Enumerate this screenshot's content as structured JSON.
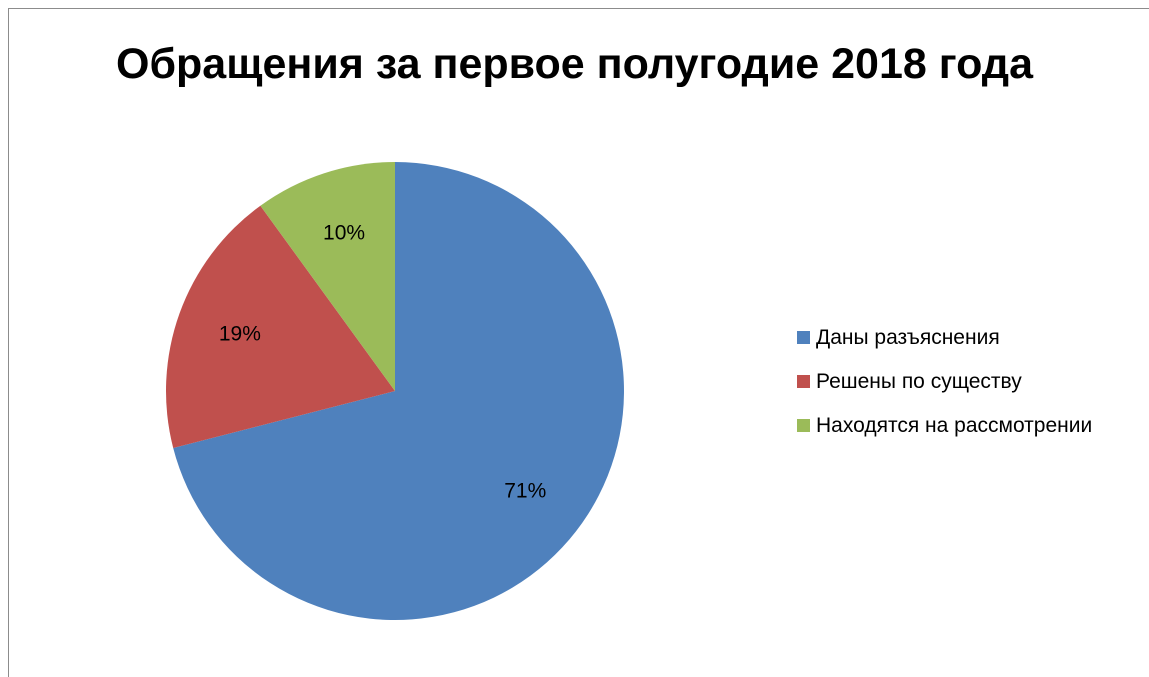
{
  "chart_data": {
    "type": "pie",
    "title": "Обращения за первое полугодие 2018 года",
    "categories": [
      "Даны разъяснения",
      "Решены по существу",
      "Находятся на рассмотрении"
    ],
    "values": [
      71,
      19,
      10
    ],
    "data_labels": [
      "71%",
      "19%",
      "10%"
    ],
    "colors": [
      "#4F81BD",
      "#C0504D",
      "#9BBB59"
    ],
    "legend_position": "right",
    "start_angle": "12 o'clock",
    "direction": "clockwise"
  }
}
